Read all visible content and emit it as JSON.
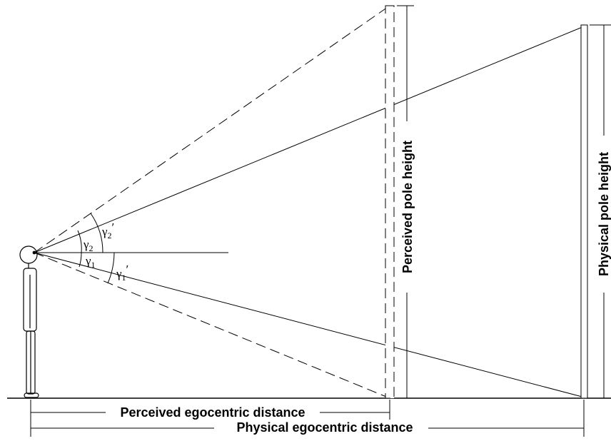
{
  "labels": {
    "perceived_pole_height": "Perceived pole height",
    "physical_pole_height": "Physical pole height",
    "perceived_egocentric_distance": "Perceived egocentric distance",
    "physical_egocentric_distance": "Physical egocentric distance"
  },
  "angles": {
    "gamma2_prime": {
      "symbol": "γ",
      "sub": "2",
      "prime": "′"
    },
    "gamma2": {
      "symbol": "γ",
      "sub": "2"
    },
    "gamma1": {
      "symbol": "γ",
      "sub": "1"
    },
    "gamma1_prime": {
      "symbol": "γ",
      "sub": "1",
      "prime": "′"
    }
  },
  "colors": {
    "line": "#000000",
    "background": "#ffffff"
  }
}
